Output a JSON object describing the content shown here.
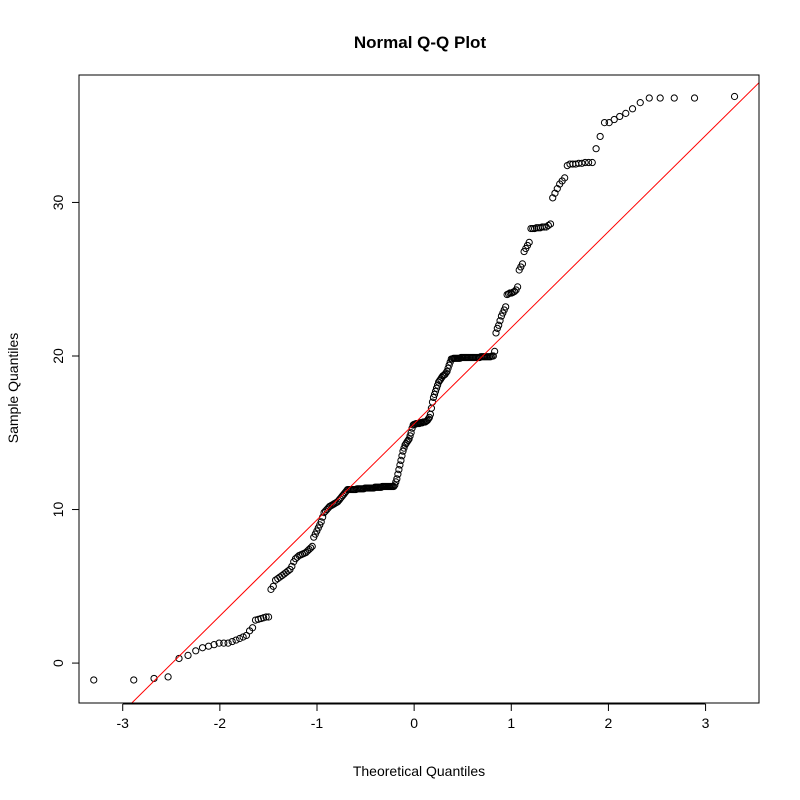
{
  "chart_data": {
    "type": "scatter",
    "title": "Normal Q-Q Plot",
    "xlabel": "Theoretical Quantiles",
    "ylabel": "Sample Quantiles",
    "xlim": [
      -3.45,
      3.55
    ],
    "ylim": [
      -2.6,
      38.3
    ],
    "x_ticks": [
      -3,
      -2,
      -1,
      0,
      1,
      2,
      3
    ],
    "y_ticks": [
      0,
      10,
      20,
      30
    ],
    "grid": false,
    "legend": "none",
    "point_color": "#000000",
    "reference_line": {
      "color": "#ff0000",
      "x": [
        -3.45,
        3.55
      ],
      "y": [
        -6.0,
        37.8
      ]
    },
    "samples": [
      -1.1,
      -1.1,
      -1.0,
      -0.9,
      0.3,
      0.5,
      0.8,
      1.0,
      1.1,
      1.2,
      1.3,
      1.3,
      1.3,
      1.4,
      1.5,
      1.6,
      1.7,
      1.8,
      2.1,
      2.3,
      2.8,
      2.85,
      2.9,
      2.95,
      3.0,
      3.0,
      4.8,
      5.0,
      5.4,
      5.5,
      5.6,
      5.7,
      5.8,
      5.9,
      6.0,
      6.1,
      6.3,
      6.6,
      6.8,
      6.9,
      7.0,
      7.05,
      7.1,
      7.15,
      7.2,
      7.3,
      7.4,
      7.5,
      7.6,
      8.2,
      8.4,
      8.6,
      8.8,
      9.0,
      9.2,
      9.5,
      9.8,
      9.9,
      10.0,
      10.1,
      10.2,
      10.25,
      10.3,
      10.35,
      10.4,
      10.45,
      10.5,
      10.6,
      10.7,
      10.8,
      10.9,
      11.0,
      11.1,
      11.2,
      11.3,
      11.3,
      11.3,
      11.3,
      11.3,
      11.3,
      11.3,
      11.3,
      11.35,
      11.35,
      11.35,
      11.35,
      11.35,
      11.35,
      11.35,
      11.4,
      11.4,
      11.4,
      11.4,
      11.4,
      11.4,
      11.4,
      11.4,
      11.4,
      11.45,
      11.45,
      11.45,
      11.45,
      11.45,
      11.45,
      11.45,
      11.5,
      11.5,
      11.5,
      11.5,
      11.5,
      11.5,
      11.5,
      11.5,
      11.5,
      11.5,
      11.5,
      11.5,
      11.6,
      11.8,
      12.0,
      12.3,
      12.6,
      12.9,
      13.2,
      13.5,
      13.8,
      14.0,
      14.2,
      14.3,
      14.4,
      14.5,
      14.6,
      14.8,
      15.0,
      15.3,
      15.5,
      15.55,
      15.55,
      15.6,
      15.6,
      15.6,
      15.6,
      15.65,
      15.65,
      15.65,
      15.7,
      15.7,
      15.7,
      15.75,
      15.8,
      15.9,
      16.0,
      16.2,
      16.6,
      17.0,
      17.3,
      17.5,
      17.7,
      17.9,
      18.1,
      18.3,
      18.4,
      18.5,
      18.6,
      18.7,
      18.75,
      18.8,
      18.9,
      19.0,
      19.2,
      19.4,
      19.6,
      19.8,
      19.8,
      19.85,
      19.85,
      19.85,
      19.85,
      19.85,
      19.85,
      19.85,
      19.9,
      19.9,
      19.9,
      19.9,
      19.9,
      19.9,
      19.9,
      19.9,
      19.9,
      19.9,
      19.9,
      19.9,
      19.9,
      19.9,
      19.9,
      19.9,
      19.9,
      19.95,
      19.95,
      19.95,
      19.95,
      19.95,
      19.95,
      19.95,
      19.95,
      19.95,
      20.0,
      20.0,
      20.3,
      21.5,
      21.8,
      22.0,
      22.3,
      22.6,
      22.8,
      23.0,
      23.2,
      24.0,
      24.05,
      24.1,
      24.1,
      24.15,
      24.2,
      24.3,
      24.5,
      25.6,
      25.8,
      26.0,
      26.8,
      27.0,
      27.2,
      27.4,
      28.3,
      28.3,
      28.3,
      28.35,
      28.35,
      28.35,
      28.4,
      28.4,
      28.4,
      28.5,
      28.6,
      30.3,
      30.6,
      30.9,
      31.2,
      31.4,
      31.6,
      32.4,
      32.5,
      32.5,
      32.5,
      32.55,
      32.55,
      32.6,
      32.6,
      32.6,
      33.5,
      34.3,
      35.2,
      35.2,
      35.4,
      35.6,
      35.8,
      36.1,
      36.5,
      36.8,
      36.8,
      36.8,
      36.8,
      36.9
    ]
  }
}
